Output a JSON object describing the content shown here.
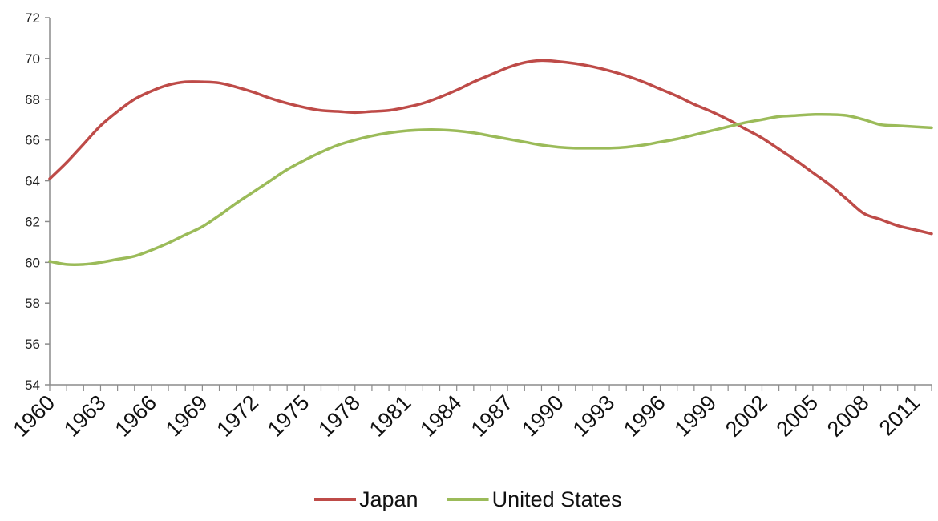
{
  "chart_data": {
    "type": "line",
    "title": "",
    "xlabel": "",
    "ylabel": "",
    "ylim": [
      54,
      72
    ],
    "yticks": [
      54,
      56,
      58,
      60,
      62,
      64,
      66,
      68,
      70,
      72
    ],
    "xlim": [
      1960,
      2012
    ],
    "xtick_labels": [
      "1960",
      "1963",
      "1966",
      "1969",
      "1972",
      "1975",
      "1978",
      "1981",
      "1984",
      "1987",
      "1990",
      "1993",
      "1996",
      "1999",
      "2002",
      "2005",
      "2008",
      "2011"
    ],
    "grid": false,
    "legend_position": "bottom",
    "x": [
      1960,
      1961,
      1962,
      1963,
      1964,
      1965,
      1966,
      1967,
      1968,
      1969,
      1970,
      1971,
      1972,
      1973,
      1974,
      1975,
      1976,
      1977,
      1978,
      1979,
      1980,
      1981,
      1982,
      1983,
      1984,
      1985,
      1986,
      1987,
      1988,
      1989,
      1990,
      1991,
      1992,
      1993,
      1994,
      1995,
      1996,
      1997,
      1998,
      1999,
      2000,
      2001,
      2002,
      2003,
      2004,
      2005,
      2006,
      2007,
      2008,
      2009,
      2010,
      2011,
      2012
    ],
    "series": [
      {
        "name": "Japan",
        "color": "#be4b48",
        "values": [
          64.1,
          64.9,
          65.8,
          66.7,
          67.4,
          68.0,
          68.4,
          68.7,
          68.85,
          68.85,
          68.8,
          68.6,
          68.35,
          68.05,
          67.8,
          67.6,
          67.45,
          67.4,
          67.35,
          67.4,
          67.45,
          67.6,
          67.8,
          68.1,
          68.45,
          68.85,
          69.2,
          69.55,
          69.8,
          69.9,
          69.85,
          69.75,
          69.6,
          69.4,
          69.15,
          68.85,
          68.5,
          68.15,
          67.75,
          67.4,
          67.0,
          66.55,
          66.1,
          65.55,
          65.0,
          64.4,
          63.8,
          63.1,
          62.4,
          62.1,
          61.8,
          61.6,
          61.4
        ]
      },
      {
        "name": "United States",
        "color": "#9bbb59",
        "values": [
          60.05,
          59.9,
          59.9,
          60.0,
          60.15,
          60.3,
          60.6,
          60.95,
          61.35,
          61.75,
          62.3,
          62.9,
          63.45,
          64.0,
          64.55,
          65.0,
          65.4,
          65.75,
          66.0,
          66.2,
          66.35,
          66.45,
          66.5,
          66.5,
          66.45,
          66.35,
          66.2,
          66.05,
          65.9,
          65.75,
          65.65,
          65.6,
          65.6,
          65.6,
          65.65,
          65.75,
          65.9,
          66.05,
          66.25,
          66.45,
          66.65,
          66.85,
          67.0,
          67.15,
          67.2,
          67.25,
          67.25,
          67.2,
          67.0,
          66.75,
          66.7,
          66.65,
          66.6
        ]
      }
    ]
  }
}
